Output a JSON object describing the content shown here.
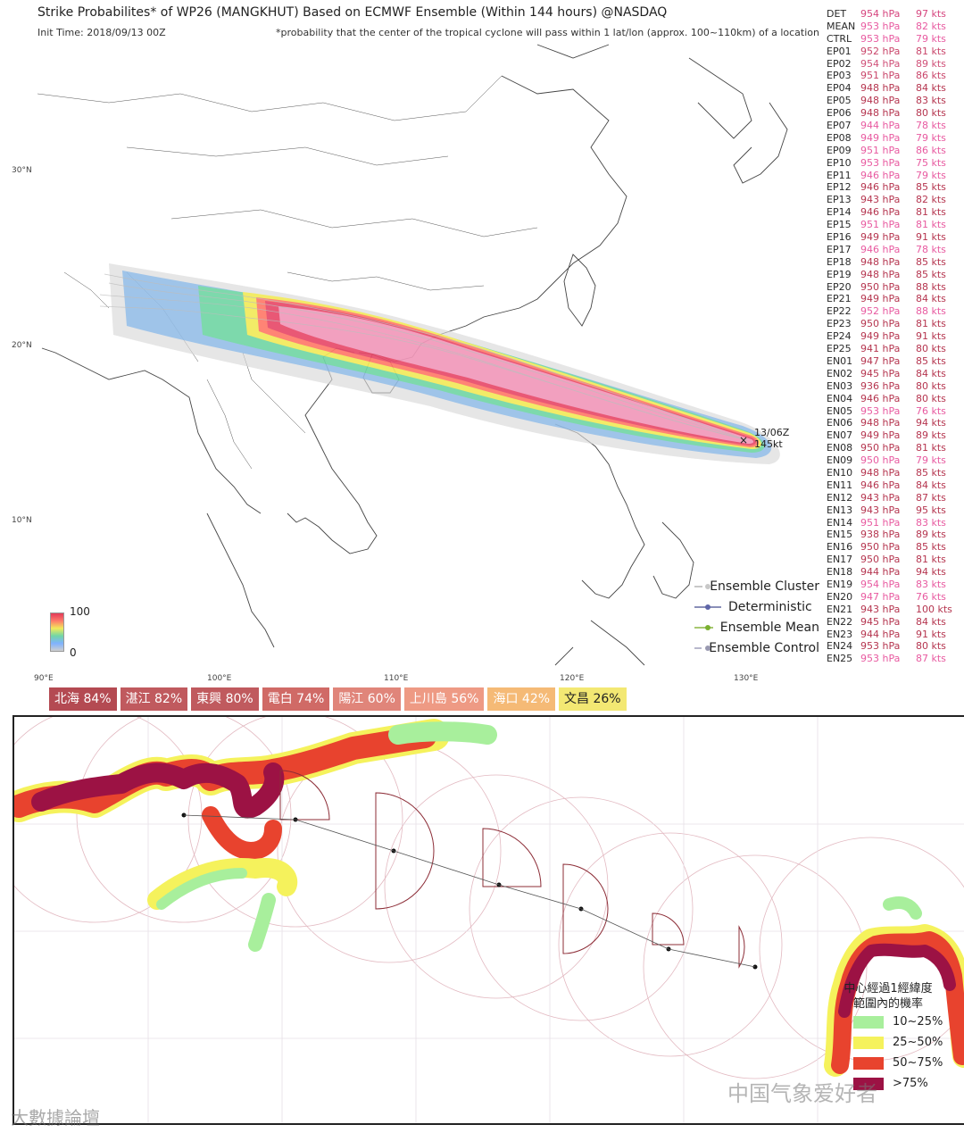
{
  "header": {
    "title": "Strike Probabilites* of WP26 (MANGKHUT) Based on ECMWF Ensemble (Within 144 hours) @NASDAQ",
    "init_time": "Init Time: 2018/09/13 00Z",
    "note": "*probability that the center of the tropical cyclone will pass within 1 lat/lon (approx. 100~110km) of a location"
  },
  "axes": {
    "lat_labels": [
      "30°N",
      "20°N",
      "10°N"
    ],
    "lon_labels": [
      "90°E",
      "100°E",
      "110°E",
      "120°E",
      "130°E"
    ]
  },
  "colorbar": {
    "max": "100",
    "min": "0"
  },
  "legend": {
    "items": [
      {
        "label": "Ensemble Cluster",
        "line": "#c8c8c8",
        "dot": "#c8c8c8"
      },
      {
        "label": "Deterministic",
        "line": "#8a8fb8",
        "dot": "#5f66a8"
      },
      {
        "label": "Ensemble Mean",
        "line": "#a8c870",
        "dot": "#7ab030"
      },
      {
        "label": "Ensemble Control",
        "line": "#b8b8cc",
        "dot": "#9898b0"
      }
    ]
  },
  "storm": {
    "time": "13/06Z",
    "intensity": "145kt"
  },
  "members": [
    {
      "name": "DET",
      "pressure": "954 hPa",
      "wind": "97 kts",
      "color": "#d6457e"
    },
    {
      "name": "MEAN",
      "pressure": "953 hPa",
      "wind": "82 kts",
      "color": "#e85aa0"
    },
    {
      "name": "CTRL",
      "pressure": "953 hPa",
      "wind": "79 kts",
      "color": "#e85aa0"
    },
    {
      "name": "EP01",
      "pressure": "952 hPa",
      "wind": "81 kts",
      "color": "#c9456a"
    },
    {
      "name": "EP02",
      "pressure": "954 hPa",
      "wind": "89 kts",
      "color": "#d05078"
    },
    {
      "name": "EP03",
      "pressure": "951 hPa",
      "wind": "86 kts",
      "color": "#c9456a"
    },
    {
      "name": "EP04",
      "pressure": "948 hPa",
      "wind": "84 kts",
      "color": "#b5354f"
    },
    {
      "name": "EP05",
      "pressure": "948 hPa",
      "wind": "83 kts",
      "color": "#b5354f"
    },
    {
      "name": "EP06",
      "pressure": "948 hPa",
      "wind": "80 kts",
      "color": "#b5354f"
    },
    {
      "name": "EP07",
      "pressure": "944 hPa",
      "wind": "78 kts",
      "color": "#e85aa0"
    },
    {
      "name": "EP08",
      "pressure": "949 hPa",
      "wind": "79 kts",
      "color": "#e85aa0"
    },
    {
      "name": "EP09",
      "pressure": "951 hPa",
      "wind": "86 kts",
      "color": "#e85aa0"
    },
    {
      "name": "EP10",
      "pressure": "953 hPa",
      "wind": "75 kts",
      "color": "#e85aa0"
    },
    {
      "name": "EP11",
      "pressure": "946 hPa",
      "wind": "79 kts",
      "color": "#e85aa0"
    },
    {
      "name": "EP12",
      "pressure": "946 hPa",
      "wind": "85 kts",
      "color": "#b5354f"
    },
    {
      "name": "EP13",
      "pressure": "943 hPa",
      "wind": "82 kts",
      "color": "#b5354f"
    },
    {
      "name": "EP14",
      "pressure": "946 hPa",
      "wind": "81 kts",
      "color": "#b5354f"
    },
    {
      "name": "EP15",
      "pressure": "951 hPa",
      "wind": "81 kts",
      "color": "#e85aa0"
    },
    {
      "name": "EP16",
      "pressure": "949 hPa",
      "wind": "91 kts",
      "color": "#b5354f"
    },
    {
      "name": "EP17",
      "pressure": "946 hPa",
      "wind": "78 kts",
      "color": "#e85aa0"
    },
    {
      "name": "EP18",
      "pressure": "948 hPa",
      "wind": "85 kts",
      "color": "#b5354f"
    },
    {
      "name": "EP19",
      "pressure": "948 hPa",
      "wind": "85 kts",
      "color": "#b5354f"
    },
    {
      "name": "EP20",
      "pressure": "950 hPa",
      "wind": "88 kts",
      "color": "#b5354f"
    },
    {
      "name": "EP21",
      "pressure": "949 hPa",
      "wind": "84 kts",
      "color": "#b5354f"
    },
    {
      "name": "EP22",
      "pressure": "952 hPa",
      "wind": "88 kts",
      "color": "#e85aa0"
    },
    {
      "name": "EP23",
      "pressure": "950 hPa",
      "wind": "81 kts",
      "color": "#b5354f"
    },
    {
      "name": "EP24",
      "pressure": "949 hPa",
      "wind": "91 kts",
      "color": "#b5354f"
    },
    {
      "name": "EP25",
      "pressure": "941 hPa",
      "wind": "80 kts",
      "color": "#b5354f"
    },
    {
      "name": "EN01",
      "pressure": "947 hPa",
      "wind": "85 kts",
      "color": "#b5354f"
    },
    {
      "name": "EN02",
      "pressure": "945 hPa",
      "wind": "84 kts",
      "color": "#b5354f"
    },
    {
      "name": "EN03",
      "pressure": "936 hPa",
      "wind": "80 kts",
      "color": "#b5354f"
    },
    {
      "name": "EN04",
      "pressure": "946 hPa",
      "wind": "80 kts",
      "color": "#b5354f"
    },
    {
      "name": "EN05",
      "pressure": "953 hPa",
      "wind": "76 kts",
      "color": "#e85aa0"
    },
    {
      "name": "EN06",
      "pressure": "948 hPa",
      "wind": "94 kts",
      "color": "#b5354f"
    },
    {
      "name": "EN07",
      "pressure": "949 hPa",
      "wind": "89 kts",
      "color": "#b5354f"
    },
    {
      "name": "EN08",
      "pressure": "950 hPa",
      "wind": "81 kts",
      "color": "#b5354f"
    },
    {
      "name": "EN09",
      "pressure": "950 hPa",
      "wind": "79 kts",
      "color": "#e85aa0"
    },
    {
      "name": "EN10",
      "pressure": "948 hPa",
      "wind": "85 kts",
      "color": "#b5354f"
    },
    {
      "name": "EN11",
      "pressure": "946 hPa",
      "wind": "84 kts",
      "color": "#b5354f"
    },
    {
      "name": "EN12",
      "pressure": "943 hPa",
      "wind": "87 kts",
      "color": "#b5354f"
    },
    {
      "name": "EN13",
      "pressure": "943 hPa",
      "wind": "95 kts",
      "color": "#b5354f"
    },
    {
      "name": "EN14",
      "pressure": "951 hPa",
      "wind": "83 kts",
      "color": "#e85aa0"
    },
    {
      "name": "EN15",
      "pressure": "938 hPa",
      "wind": "89 kts",
      "color": "#b5354f"
    },
    {
      "name": "EN16",
      "pressure": "950 hPa",
      "wind": "85 kts",
      "color": "#b5354f"
    },
    {
      "name": "EN17",
      "pressure": "950 hPa",
      "wind": "81 kts",
      "color": "#b5354f"
    },
    {
      "name": "EN18",
      "pressure": "944 hPa",
      "wind": "94 kts",
      "color": "#b5354f"
    },
    {
      "name": "EN19",
      "pressure": "954 hPa",
      "wind": "83 kts",
      "color": "#e85aa0"
    },
    {
      "name": "EN20",
      "pressure": "947 hPa",
      "wind": "76 kts",
      "color": "#e85aa0"
    },
    {
      "name": "EN21",
      "pressure": "943 hPa",
      "wind": "100 kts",
      "color": "#b5354f"
    },
    {
      "name": "EN22",
      "pressure": "945 hPa",
      "wind": "84 kts",
      "color": "#b5354f"
    },
    {
      "name": "EN23",
      "pressure": "944 hPa",
      "wind": "91 kts",
      "color": "#b5354f"
    },
    {
      "name": "EN24",
      "pressure": "953 hPa",
      "wind": "80 kts",
      "color": "#b5354f"
    },
    {
      "name": "EN25",
      "pressure": "953 hPa",
      "wind": "87 kts",
      "color": "#e85aa0"
    }
  ],
  "cities": [
    {
      "label": "北海 84%",
      "color": "#b44a52"
    },
    {
      "label": "湛江 82%",
      "color": "#c05a5e"
    },
    {
      "label": "東興 80%",
      "color": "#c05a5e"
    },
    {
      "label": "電白 74%",
      "color": "#d06a66"
    },
    {
      "label": "陽江 60%",
      "color": "#e0857a"
    },
    {
      "label": "上川島 56%",
      "color": "#ee9a84"
    },
    {
      "label": "海口 42%",
      "color": "#f5ba76"
    },
    {
      "label": "文昌 26%",
      "color": "#f3e873",
      "text": "#222222"
    }
  ],
  "prob_legend": {
    "title_line1": "中心經過1經緯度",
    "title_line2": "範圍內的機率",
    "items": [
      {
        "label": "10~25%",
        "color": "#a8ef9c"
      },
      {
        "label": "25~50%",
        "color": "#f5f25c"
      },
      {
        "label": "50~75%",
        "color": "#e8432e"
      },
      {
        "label": ">75%",
        "color": "#9c1244"
      }
    ]
  },
  "watermarks": {
    "right": "中国气象爱好者",
    "left": "大數據論壇"
  }
}
